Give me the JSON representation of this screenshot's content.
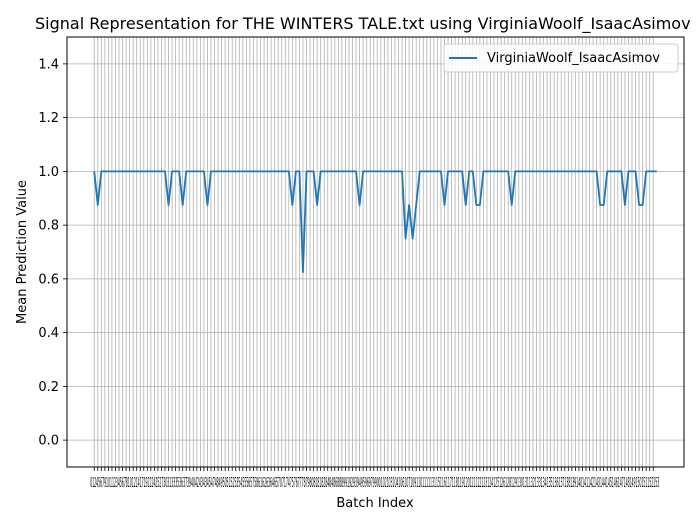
{
  "chart_data": {
    "type": "line",
    "title": "Signal Representation for THE WINTERS TALE.txt using VirginiaWoolf_IsaacAsimov",
    "xlabel": "Batch Index",
    "ylabel": "Mean Prediction Value",
    "xlim": [
      -7.7,
      166.7
    ],
    "ylim": [
      -0.1,
      1.5
    ],
    "yticks": [
      0.0,
      0.2,
      0.4,
      0.6,
      0.8,
      1.0,
      1.2,
      1.4
    ],
    "ytick_labels": [
      "0.0",
      "0.2",
      "0.4",
      "0.6",
      "0.8",
      "1.0",
      "1.2",
      "1.4"
    ],
    "x_tick_count": 159,
    "x_tick_labels_visible": "012456791011234567810121417192224252730313335363739404243434547484950515253545556575861626364657071747576777879808181828484868889919293949596979900102103104106107109110111113115116117118119120121122123124125126128129130131132133134135136137138139140141142143144145146147148149150151152153",
    "grid": true,
    "legend": {
      "position": "top-right",
      "entries": [
        "VirginiaWoolf_IsaacAsimov"
      ]
    },
    "series": [
      {
        "name": "VirginiaWoolf_IsaacAsimov",
        "color": "#1f77b4",
        "x_start": 0,
        "values": [
          1.0,
          0.875,
          1.0,
          1.0,
          1.0,
          1.0,
          1.0,
          1.0,
          1.0,
          1.0,
          1.0,
          1.0,
          1.0,
          1.0,
          1.0,
          1.0,
          1.0,
          1.0,
          1.0,
          1.0,
          1.0,
          0.875,
          1.0,
          1.0,
          1.0,
          0.875,
          1.0,
          1.0,
          1.0,
          1.0,
          1.0,
          1.0,
          0.875,
          1.0,
          1.0,
          1.0,
          1.0,
          1.0,
          1.0,
          1.0,
          1.0,
          1.0,
          1.0,
          1.0,
          1.0,
          1.0,
          1.0,
          1.0,
          1.0,
          1.0,
          1.0,
          1.0,
          1.0,
          1.0,
          1.0,
          1.0,
          0.875,
          1.0,
          1.0,
          0.625,
          1.0,
          1.0,
          1.0,
          0.875,
          1.0,
          1.0,
          1.0,
          1.0,
          1.0,
          1.0,
          1.0,
          1.0,
          1.0,
          1.0,
          1.0,
          0.875,
          1.0,
          1.0,
          1.0,
          1.0,
          1.0,
          1.0,
          1.0,
          1.0,
          1.0,
          1.0,
          1.0,
          1.0,
          0.75,
          0.875,
          0.75,
          0.875,
          1.0,
          1.0,
          1.0,
          1.0,
          1.0,
          1.0,
          1.0,
          0.875,
          1.0,
          1.0,
          1.0,
          1.0,
          1.0,
          0.875,
          1.0,
          1.0,
          0.875,
          0.875,
          1.0,
          1.0,
          1.0,
          1.0,
          1.0,
          1.0,
          1.0,
          1.0,
          0.875,
          1.0,
          1.0,
          1.0,
          1.0,
          1.0,
          1.0,
          1.0,
          1.0,
          1.0,
          1.0,
          1.0,
          1.0,
          1.0,
          1.0,
          1.0,
          1.0,
          1.0,
          1.0,
          1.0,
          1.0,
          1.0,
          1.0,
          1.0,
          1.0,
          0.875,
          0.875,
          1.0,
          1.0,
          1.0,
          1.0,
          1.0,
          0.875,
          1.0,
          1.0,
          1.0,
          0.875,
          0.875,
          1.0,
          1.0,
          1.0,
          1.0
        ]
      }
    ]
  }
}
